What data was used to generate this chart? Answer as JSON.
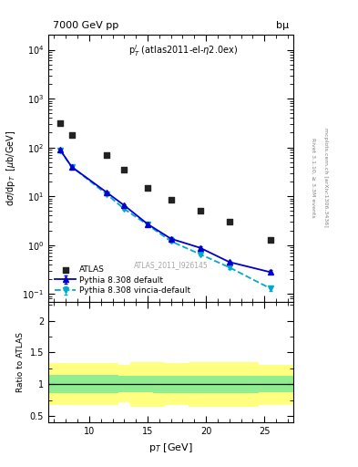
{
  "title_left": "7000 GeV pp",
  "title_right": "bµ",
  "annotation": "p$^l_T$ (atlas2011-el-η2.0ex)",
  "watermark": "ATLAS_2011_I926145",
  "right_label1": "Rivet 3.1.10, ≥ 3.3M events",
  "right_label2": "mcplots.cern.ch [arXiv:1306.3436]",
  "xlabel": "p$_T$ [GeV]",
  "ylabel": "dσ/dp$_T$  [μb/GeV]",
  "ylabel_ratio": "Ratio to ATLAS",
  "xlim": [
    6.5,
    27.5
  ],
  "ylim_log": [
    0.07,
    20000
  ],
  "ylim_ratio": [
    0.4,
    2.3
  ],
  "atlas_x": [
    7.5,
    8.5,
    11.5,
    13.0,
    15.0,
    17.0,
    19.5,
    22.0,
    25.5
  ],
  "atlas_y": [
    320,
    180,
    70,
    35,
    15,
    8.5,
    5.0,
    3.0,
    1.3
  ],
  "py_def_x": [
    7.5,
    8.5,
    11.5,
    13.0,
    15.0,
    17.0,
    19.5,
    22.0,
    25.5
  ],
  "py_def_y": [
    90,
    40,
    12,
    6.5,
    2.7,
    1.35,
    0.88,
    0.45,
    0.28
  ],
  "py_def_yerr_lo": [
    4,
    2,
    0.6,
    0.3,
    0.15,
    0.08,
    0.06,
    0.03,
    0.025
  ],
  "py_def_yerr_hi": [
    4,
    2,
    0.6,
    0.3,
    0.15,
    0.08,
    0.06,
    0.03,
    0.025
  ],
  "py_vin_x": [
    7.5,
    8.5,
    11.5,
    13.0,
    15.0,
    17.0,
    19.5,
    22.0,
    25.5
  ],
  "py_vin_y": [
    88,
    40,
    11,
    5.5,
    2.6,
    1.2,
    0.65,
    0.35,
    0.13
  ],
  "py_vin_yerr_lo": [
    4,
    2,
    0.5,
    0.3,
    0.12,
    0.07,
    0.04,
    0.025,
    0.015
  ],
  "py_vin_yerr_hi": [
    4,
    2,
    0.5,
    0.3,
    0.12,
    0.07,
    0.04,
    0.025,
    0.015
  ],
  "band_x_edges": [
    6.5,
    8.0,
    9.5,
    12.5,
    13.5,
    15.5,
    16.5,
    18.5,
    20.5,
    21.5,
    24.5,
    27.5
  ],
  "green_lo": [
    0.87,
    0.87,
    0.87,
    0.88,
    0.88,
    0.87,
    0.87,
    0.87,
    0.87,
    0.87,
    0.88,
    0.88
  ],
  "green_hi": [
    1.15,
    1.15,
    1.15,
    1.13,
    1.13,
    1.13,
    1.13,
    1.13,
    1.13,
    1.13,
    1.13,
    1.13
  ],
  "yellow_lo": [
    0.68,
    0.68,
    0.68,
    0.72,
    0.65,
    0.65,
    0.67,
    0.65,
    0.65,
    0.65,
    0.68,
    0.7
  ],
  "yellow_hi": [
    1.33,
    1.33,
    1.33,
    1.3,
    1.35,
    1.35,
    1.33,
    1.35,
    1.35,
    1.35,
    1.3,
    1.3
  ],
  "color_atlas": "#222222",
  "color_default": "#0000cc",
  "color_vincia": "#00aacc",
  "color_green": "#90ee90",
  "color_yellow": "#ffff80",
  "bg_color": "#ffffff"
}
